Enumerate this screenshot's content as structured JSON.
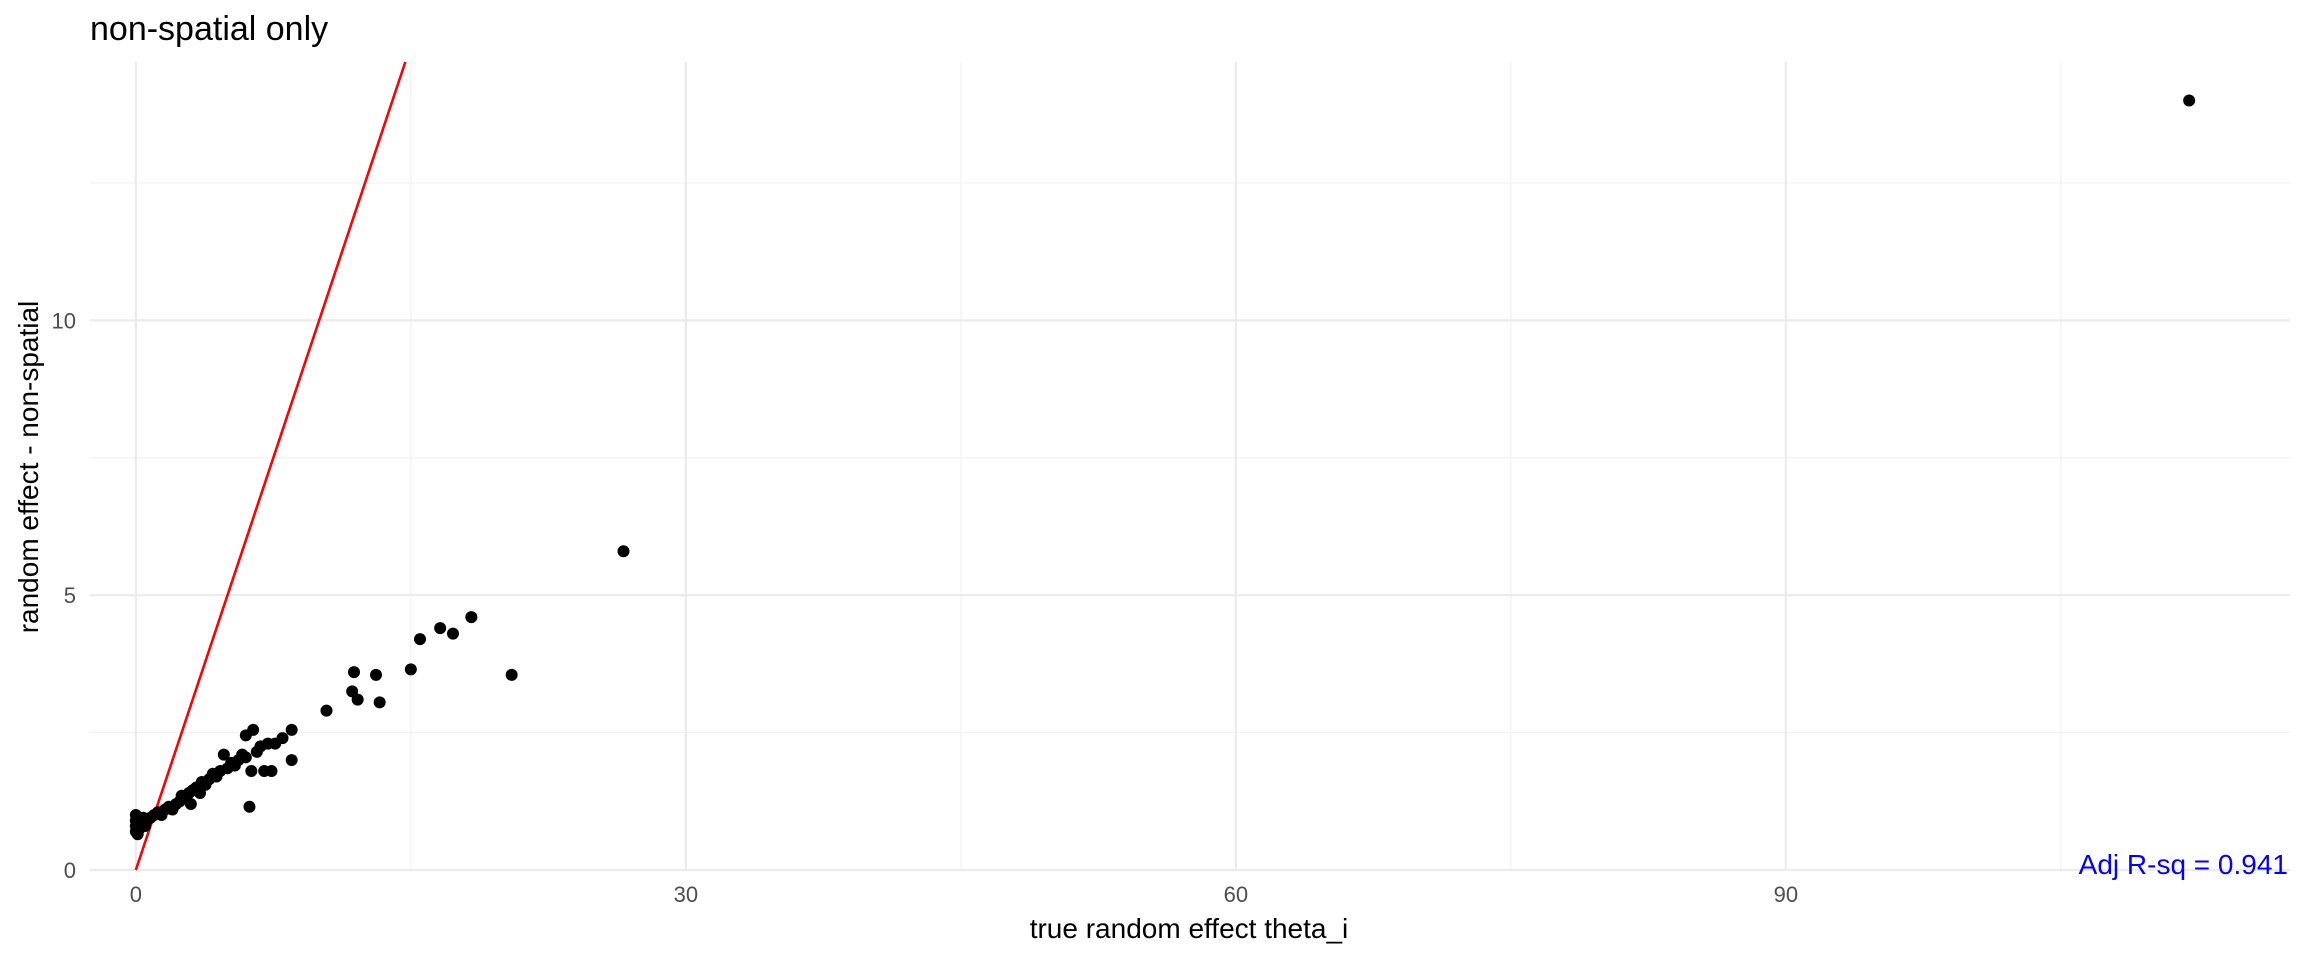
{
  "chart_data": {
    "type": "scatter",
    "title": "non-spatial only",
    "xlabel": "true random effect theta_i",
    "ylabel": "random effect - non-spatial",
    "xlim": [
      -2.5,
      117.5
    ],
    "ylim": [
      0,
      14.7
    ],
    "x_ticks": [
      0,
      30,
      60,
      90
    ],
    "x_tick_labels": [
      "0",
      "30",
      "60",
      "90"
    ],
    "y_ticks": [
      0,
      5,
      10
    ],
    "y_tick_labels": [
      "0",
      "5",
      "10"
    ],
    "grid": true,
    "annotation": "Adj R-sq = 0.941",
    "annotation_color": "#0000ff",
    "reference_line": {
      "slope": 1,
      "intercept": 0,
      "color": "#ff0000"
    },
    "points": [
      {
        "x": 0,
        "y": 0.7
      },
      {
        "x": 0.0,
        "y": 0.8
      },
      {
        "x": 0.0,
        "y": 0.9
      },
      {
        "x": 0.0,
        "y": 1.0
      },
      {
        "x": 0.1,
        "y": 0.65
      },
      {
        "x": 0.2,
        "y": 0.75
      },
      {
        "x": 0.3,
        "y": 0.85
      },
      {
        "x": 0.4,
        "y": 0.95
      },
      {
        "x": 0.5,
        "y": 0.8
      },
      {
        "x": 0.6,
        "y": 0.9
      },
      {
        "x": 0.8,
        "y": 0.95
      },
      {
        "x": 1.0,
        "y": 1.0
      },
      {
        "x": 1.2,
        "y": 1.05
      },
      {
        "x": 1.4,
        "y": 1.0
      },
      {
        "x": 1.6,
        "y": 1.1
      },
      {
        "x": 1.8,
        "y": 1.15
      },
      {
        "x": 2.0,
        "y": 1.1
      },
      {
        "x": 2.2,
        "y": 1.2
      },
      {
        "x": 2.4,
        "y": 1.25
      },
      {
        "x": 2.5,
        "y": 1.35
      },
      {
        "x": 2.7,
        "y": 1.3
      },
      {
        "x": 2.9,
        "y": 1.4
      },
      {
        "x": 3.0,
        "y": 1.2
      },
      {
        "x": 3.1,
        "y": 1.45
      },
      {
        "x": 3.3,
        "y": 1.5
      },
      {
        "x": 3.5,
        "y": 1.4
      },
      {
        "x": 3.6,
        "y": 1.6
      },
      {
        "x": 3.8,
        "y": 1.55
      },
      {
        "x": 4.0,
        "y": 1.65
      },
      {
        "x": 4.2,
        "y": 1.75
      },
      {
        "x": 4.4,
        "y": 1.7
      },
      {
        "x": 4.6,
        "y": 1.8
      },
      {
        "x": 4.8,
        "y": 2.1
      },
      {
        "x": 5.0,
        "y": 1.85
      },
      {
        "x": 5.2,
        "y": 1.95
      },
      {
        "x": 5.4,
        "y": 1.9
      },
      {
        "x": 5.6,
        "y": 2.0
      },
      {
        "x": 5.8,
        "y": 2.1
      },
      {
        "x": 6.0,
        "y": 2.05
      },
      {
        "x": 6.0,
        "y": 2.45
      },
      {
        "x": 6.2,
        "y": 1.15
      },
      {
        "x": 6.3,
        "y": 1.8
      },
      {
        "x": 6.4,
        "y": 2.55
      },
      {
        "x": 6.6,
        "y": 2.15
      },
      {
        "x": 6.8,
        "y": 2.25
      },
      {
        "x": 7.0,
        "y": 1.8
      },
      {
        "x": 7.2,
        "y": 2.3
      },
      {
        "x": 7.4,
        "y": 1.8
      },
      {
        "x": 7.6,
        "y": 2.3
      },
      {
        "x": 8.0,
        "y": 2.4
      },
      {
        "x": 8.5,
        "y": 2.55
      },
      {
        "x": 8.5,
        "y": 2.0
      },
      {
        "x": 10.4,
        "y": 2.9
      },
      {
        "x": 11.8,
        "y": 3.25
      },
      {
        "x": 11.9,
        "y": 3.6
      },
      {
        "x": 12.1,
        "y": 3.1
      },
      {
        "x": 13.1,
        "y": 3.55
      },
      {
        "x": 13.3,
        "y": 3.05
      },
      {
        "x": 15.0,
        "y": 3.65
      },
      {
        "x": 15.5,
        "y": 4.2
      },
      {
        "x": 16.6,
        "y": 4.4
      },
      {
        "x": 17.3,
        "y": 4.3
      },
      {
        "x": 18.3,
        "y": 4.6
      },
      {
        "x": 20.5,
        "y": 3.55
      },
      {
        "x": 26.6,
        "y": 5.8
      },
      {
        "x": 112.0,
        "y": 14.0
      }
    ]
  }
}
